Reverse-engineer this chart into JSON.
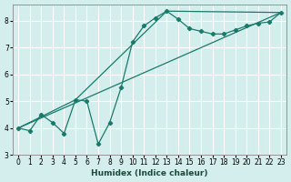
{
  "xlabel": "Humidex (Indice chaleur)",
  "bg_color": "#d4eeee",
  "line_color": "#1a7a6a",
  "grid_color": "#ffffff",
  "xlim": [
    -0.5,
    23.5
  ],
  "ylim": [
    3.0,
    8.6
  ],
  "yticks": [
    3,
    4,
    5,
    6,
    7,
    8
  ],
  "xticks": [
    0,
    1,
    2,
    3,
    4,
    5,
    6,
    7,
    8,
    9,
    10,
    11,
    12,
    13,
    14,
    15,
    16,
    17,
    18,
    19,
    20,
    21,
    22,
    23
  ],
  "series1_x": [
    0,
    1,
    2,
    3,
    4,
    5,
    6,
    7,
    8,
    9,
    10,
    11,
    12,
    13,
    14,
    15,
    16,
    17,
    18,
    19,
    20,
    21,
    22,
    23
  ],
  "series1_y": [
    4.0,
    3.9,
    4.5,
    4.2,
    3.8,
    5.05,
    5.0,
    3.4,
    4.2,
    5.5,
    7.2,
    7.8,
    8.1,
    8.35,
    8.05,
    7.7,
    7.6,
    7.5,
    7.5,
    7.65,
    7.8,
    7.9,
    7.95,
    8.3
  ],
  "series2_x": [
    0,
    23
  ],
  "series2_y": [
    4.0,
    8.3
  ],
  "series3_x": [
    0,
    5,
    13,
    23
  ],
  "series3_y": [
    4.0,
    5.05,
    8.35,
    8.3
  ]
}
